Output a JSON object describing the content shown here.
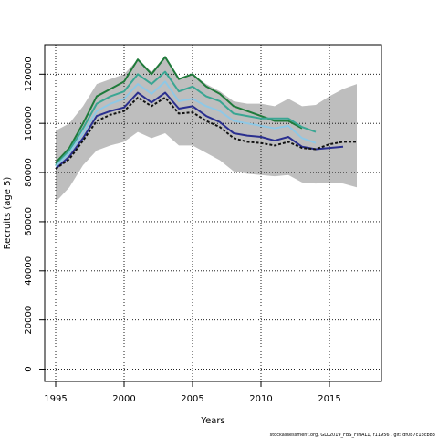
{
  "chart_data": {
    "type": "line",
    "xlabel": "Years",
    "ylabel": "Recruits (age 5)",
    "xlim": [
      1994.2,
      2018.8
    ],
    "ylim": [
      -5000,
      132000
    ],
    "x_ticks": [
      1995,
      2000,
      2005,
      2010,
      2015
    ],
    "y_ticks": [
      0,
      20000,
      40000,
      60000,
      80000,
      100000,
      120000
    ],
    "grid": true,
    "footnote": "stockassessment.org, GLL2019_FBS_FINAL1, r11956 , git: df0b7c1bcb83",
    "confidence_band": {
      "fill": "#bebebe",
      "x": [
        1995,
        1996,
        1997,
        1998,
        1999,
        2000,
        2001,
        2002,
        2003,
        2004,
        2005,
        2006,
        2007,
        2008,
        2009,
        2010,
        2011,
        2012,
        2013,
        2014,
        2015,
        2016,
        2017
      ],
      "upper": [
        97000,
        100000,
        107000,
        116000,
        118000,
        120000,
        126000,
        121000,
        127000,
        118000,
        120000,
        116000,
        113000,
        109000,
        108000,
        108000,
        107000,
        110000,
        107000,
        107500,
        111000,
        114000,
        116000
      ],
      "lower": [
        68000,
        74000,
        83000,
        89000,
        91000,
        92500,
        96500,
        94000,
        96000,
        91000,
        91000,
        88000,
        85000,
        80500,
        79500,
        79000,
        78500,
        79000,
        76000,
        75500,
        76000,
        75500,
        74000
      ]
    },
    "series": [
      {
        "color": "#1f7a3a",
        "width": 2,
        "dash": "",
        "x": [
          1995,
          1996,
          1997,
          1998,
          1999,
          2000,
          2001,
          2002,
          2003,
          2004,
          2005,
          2006,
          2007,
          2008,
          2009,
          2010,
          2011,
          2012,
          2013
        ],
        "values": [
          84000,
          90000,
          100000,
          111000,
          114000,
          117000,
          126000,
          120000,
          127000,
          118000,
          120000,
          115000,
          112000,
          107000,
          105000,
          103000,
          101000,
          101000,
          98000
        ]
      },
      {
        "color": "#3aa693",
        "width": 2,
        "dash": "",
        "x": [
          1995,
          1996,
          1997,
          1998,
          1999,
          2000,
          2001,
          2002,
          2003,
          2004,
          2005,
          2006,
          2007,
          2008,
          2009,
          2010,
          2011,
          2012,
          2013,
          2014
        ],
        "values": [
          83000,
          89000,
          98000,
          108000,
          111000,
          113000,
          120000,
          116000,
          121000,
          113000,
          115000,
          111000,
          109000,
          104000,
          103000,
          102000,
          102000,
          102000,
          98500,
          96500
        ]
      },
      {
        "color": "#8ec8e6",
        "width": 2,
        "dash": "",
        "x": [
          1995,
          1996,
          1997,
          1998,
          1999,
          2000,
          2001,
          2002,
          2003,
          2004,
          2005,
          2006,
          2007,
          2008,
          2009,
          2010,
          2011,
          2012,
          2013,
          2014
        ],
        "values": [
          82500,
          88000,
          96000,
          105000,
          108000,
          110000,
          116000,
          112000,
          117000,
          109000,
          110000,
          107000,
          105000,
          101000,
          100000,
          99000,
          98000,
          99000,
          94000,
          92000
        ]
      },
      {
        "color": "#2a2f8f",
        "width": 2,
        "dash": "",
        "x": [
          1995,
          1996,
          1997,
          1998,
          1999,
          2000,
          2001,
          2002,
          2003,
          2004,
          2005,
          2006,
          2007,
          2008,
          2009,
          2010,
          2011,
          2012,
          2013,
          2014,
          2015,
          2016
        ],
        "values": [
          81500,
          86500,
          94000,
          103000,
          105000,
          106500,
          112500,
          108500,
          112500,
          106000,
          107000,
          103000,
          100500,
          96000,
          95000,
          94500,
          93000,
          94500,
          90500,
          89500,
          90000,
          90500
        ]
      },
      {
        "color": "#111111",
        "width": 2,
        "dash": "3,2",
        "x": [
          1995,
          1996,
          1997,
          1998,
          1999,
          2000,
          2001,
          2002,
          2003,
          2004,
          2005,
          2006,
          2007,
          2008,
          2009,
          2010,
          2011,
          2012,
          2013,
          2014,
          2015,
          2016,
          2017
        ],
        "values": [
          81500,
          85500,
          93000,
          101000,
          103500,
          105000,
          110500,
          107000,
          110500,
          104000,
          104500,
          101000,
          98500,
          94000,
          92500,
          92000,
          91000,
          92500,
          90000,
          89500,
          91500,
          92500,
          92500
        ]
      }
    ]
  }
}
